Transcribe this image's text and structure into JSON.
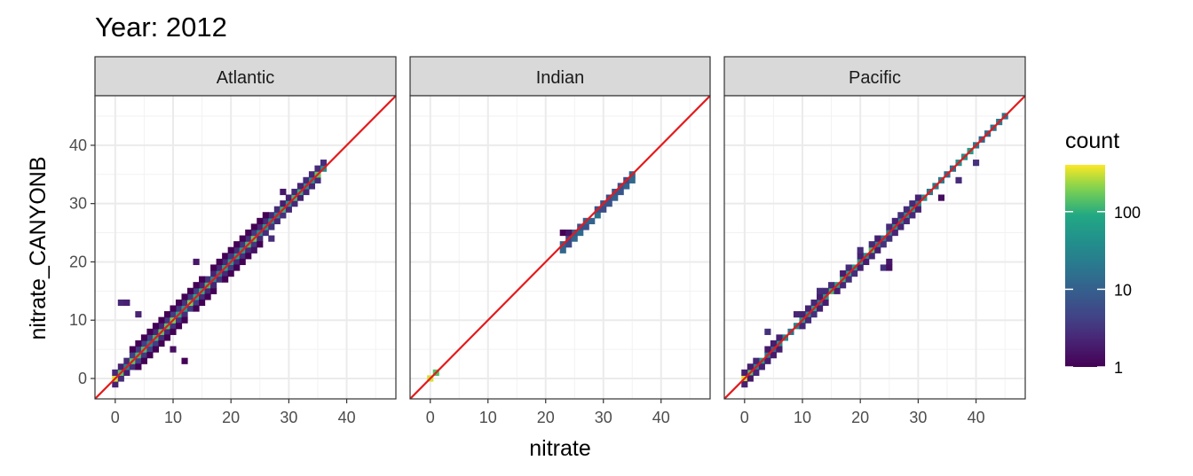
{
  "chart_data": {
    "type": "heatmap",
    "title": "Year: 2012",
    "xlabel": "nitrate",
    "ylabel": "nitrate_CANYONB",
    "xlim": [
      -3.5,
      48.5
    ],
    "ylim": [
      -3.5,
      48.5
    ],
    "x_ticks": [
      0,
      10,
      20,
      30,
      40
    ],
    "y_ticks": [
      0,
      10,
      20,
      30,
      40
    ],
    "x_tick_labels": [
      "0",
      "10",
      "20",
      "30",
      "40"
    ],
    "y_tick_labels": [
      "0",
      "10",
      "20",
      "30",
      "40"
    ],
    "grid": true,
    "reference_line": {
      "slope": 1,
      "intercept": 0,
      "color": "#e41a1c"
    },
    "facets": [
      {
        "label": "Atlantic",
        "segments": [
          {
            "x0": 0,
            "x1": 36,
            "w": 1.2,
            "m": 0.15
          },
          {
            "x0": 3,
            "x1": 14,
            "w": 2.8,
            "m": 0.12
          },
          {
            "x0": 14,
            "x1": 26,
            "w": 2.2,
            "m": 0.12
          },
          {
            "x0": 26,
            "x1": 35,
            "w": 1.5,
            "m": 0.12
          }
        ],
        "points": [
          [
            0.5,
            13
          ],
          [
            1,
            13
          ],
          [
            1.5,
            13
          ],
          [
            4,
            11
          ],
          [
            12,
            3
          ],
          [
            14,
            20
          ],
          [
            29,
            32
          ],
          [
            27,
            24
          ],
          [
            24,
            22
          ],
          [
            10,
            5
          ]
        ]
      },
      {
        "label": "Indian",
        "segments": [
          {
            "x0": 22.5,
            "x1": 35,
            "w": 0.9,
            "m": 0.3
          }
        ],
        "points": [
          [
            23,
            25
          ],
          [
            23.5,
            25
          ],
          [
            25,
            24
          ],
          [
            27,
            26
          ]
        ]
      },
      {
        "label": "Pacific",
        "segments": [
          {
            "x0": 0,
            "x1": 45,
            "w": 0.7,
            "m": 0.3
          },
          {
            "x0": 0,
            "x1": 6,
            "w": 1.6,
            "m": 0.35
          },
          {
            "x0": 10,
            "x1": 30,
            "w": 1.4,
            "m": 0.12
          }
        ],
        "points": [
          [
            4,
            8
          ],
          [
            20,
            22
          ],
          [
            24,
            19
          ],
          [
            24.5,
            20
          ],
          [
            25,
            19
          ],
          [
            34,
            31
          ],
          [
            37,
            34
          ],
          [
            40,
            37
          ],
          [
            13,
            15
          ],
          [
            9,
            11
          ]
        ]
      }
    ],
    "legend": {
      "title": "count",
      "placement": "right",
      "scale": "log",
      "colormap": "viridis",
      "range": [
        1,
        400
      ],
      "tick_values": [
        1,
        10,
        100
      ],
      "tick_labels": [
        "1",
        "10",
        "100"
      ]
    }
  }
}
